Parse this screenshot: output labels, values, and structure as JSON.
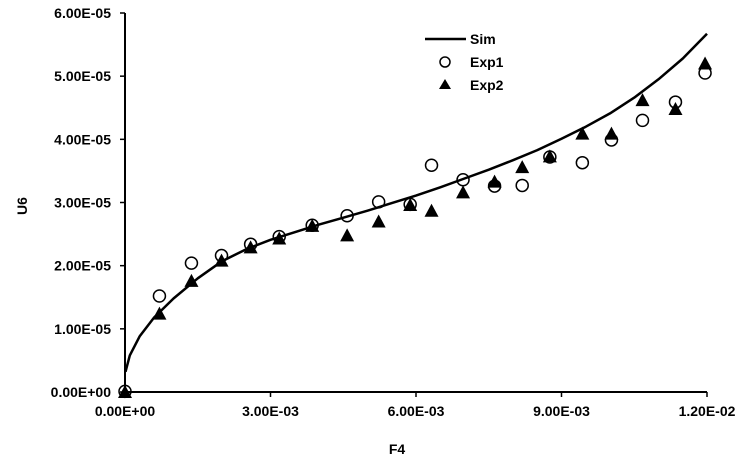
{
  "chart_data": {
    "type": "scatter",
    "title": "",
    "xlabel": "F4",
    "ylabel": "U6",
    "xlim": [
      0,
      0.012
    ],
    "ylim": [
      0,
      6e-05
    ],
    "grid": false,
    "legend_position": "top-center",
    "x_ticks": [
      {
        "value": 0,
        "label": "0.00E+00"
      },
      {
        "value": 0.003,
        "label": "3.00E-03"
      },
      {
        "value": 0.006,
        "label": "6.00E-03"
      },
      {
        "value": 0.009,
        "label": "9.00E-03"
      },
      {
        "value": 0.012,
        "label": "1.20E-02"
      }
    ],
    "y_ticks": [
      {
        "value": 0,
        "label": "0.00E+00"
      },
      {
        "value": 1e-05,
        "label": "1.00E-05"
      },
      {
        "value": 2e-05,
        "label": "2.00E-05"
      },
      {
        "value": 3e-05,
        "label": "3.00E-05"
      },
      {
        "value": 4e-05,
        "label": "4.00E-05"
      },
      {
        "value": 5e-05,
        "label": "5.00E-05"
      },
      {
        "value": 6e-05,
        "label": "6.00E-05"
      }
    ],
    "series": [
      {
        "name": "Sim",
        "kind": "line",
        "color": "#000000",
        "points": [
          [
            1e-05,
            3.2e-06
          ],
          [
            0.0001,
            5.8e-06
          ],
          [
            0.0003,
            8.8e-06
          ],
          [
            0.0006,
            1.18e-05
          ],
          [
            0.001,
            1.48e-05
          ],
          [
            0.0015,
            1.8e-05
          ],
          [
            0.002,
            2.07e-05
          ],
          [
            0.0025,
            2.26e-05
          ],
          [
            0.003,
            2.41e-05
          ],
          [
            0.0035,
            2.53e-05
          ],
          [
            0.004,
            2.65e-05
          ],
          [
            0.0045,
            2.76e-05
          ],
          [
            0.005,
            2.87e-05
          ],
          [
            0.0055,
            2.99e-05
          ],
          [
            0.006,
            3.11e-05
          ],
          [
            0.0065,
            3.24e-05
          ],
          [
            0.007,
            3.38e-05
          ],
          [
            0.0075,
            3.52e-05
          ],
          [
            0.008,
            3.67e-05
          ],
          [
            0.0085,
            3.83e-05
          ],
          [
            0.009,
            4.01e-05
          ],
          [
            0.0095,
            4.2e-05
          ],
          [
            0.01,
            4.41e-05
          ],
          [
            0.0105,
            4.66e-05
          ],
          [
            0.011,
            4.95e-05
          ],
          [
            0.0115,
            5.28e-05
          ],
          [
            0.012,
            5.67e-05
          ]
        ]
      },
      {
        "name": "Exp1",
        "kind": "scatter",
        "marker": "open-circle",
        "color": "#000000",
        "points": [
          [
            0.0,
            1e-07
          ],
          [
            0.00071,
            1.52e-05
          ],
          [
            0.00137,
            2.04e-05
          ],
          [
            0.00199,
            2.16e-05
          ],
          [
            0.00259,
            2.34e-05
          ],
          [
            0.00318,
            2.46e-05
          ],
          [
            0.00386,
            2.64e-05
          ],
          [
            0.00458,
            2.79e-05
          ],
          [
            0.00523,
            3.01e-05
          ],
          [
            0.00588,
            2.97e-05
          ],
          [
            0.00632,
            3.59e-05
          ],
          [
            0.00697,
            3.36e-05
          ],
          [
            0.00762,
            3.26e-05
          ],
          [
            0.00819,
            3.27e-05
          ],
          [
            0.00876,
            3.72e-05
          ],
          [
            0.00943,
            3.63e-05
          ],
          [
            0.01003,
            3.99e-05
          ],
          [
            0.01067,
            4.3e-05
          ],
          [
            0.01135,
            4.59e-05
          ],
          [
            0.01196,
            5.05e-05
          ]
        ]
      },
      {
        "name": "Exp2",
        "kind": "scatter",
        "marker": "filled-triangle",
        "color": "#000000",
        "points": [
          [
            0.0,
            0.0
          ],
          [
            0.00071,
            1.24e-05
          ],
          [
            0.00137,
            1.76e-05
          ],
          [
            0.00199,
            2.08e-05
          ],
          [
            0.00259,
            2.29e-05
          ],
          [
            0.00318,
            2.43e-05
          ],
          [
            0.00386,
            2.63e-05
          ],
          [
            0.00458,
            2.48e-05
          ],
          [
            0.00523,
            2.7e-05
          ],
          [
            0.00588,
            2.96e-05
          ],
          [
            0.00632,
            2.87e-05
          ],
          [
            0.00697,
            3.16e-05
          ],
          [
            0.00762,
            3.33e-05
          ],
          [
            0.00819,
            3.56e-05
          ],
          [
            0.00876,
            3.73e-05
          ],
          [
            0.00943,
            4.09e-05
          ],
          [
            0.01003,
            4.09e-05
          ],
          [
            0.01067,
            4.62e-05
          ],
          [
            0.01135,
            4.48e-05
          ],
          [
            0.01196,
            5.2e-05
          ]
        ]
      }
    ]
  }
}
